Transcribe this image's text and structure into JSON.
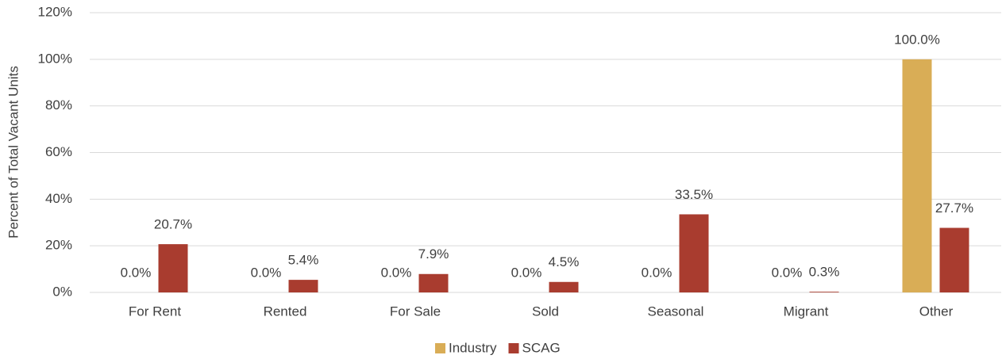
{
  "chart_data": {
    "type": "bar",
    "y_label": "Percent of Total Vacant Units",
    "categories": [
      "For Rent",
      "Rented",
      "For Sale",
      "Sold",
      "Seasonal",
      "Migrant",
      "Other"
    ],
    "series": [
      {
        "name": "Industry",
        "color": "#d9ad56",
        "values": [
          0,
          0,
          0,
          0,
          0,
          0,
          100
        ],
        "value_labels": [
          "0.0%",
          "0.0%",
          "0.0%",
          "0.0%",
          "0.0%",
          "0.0%",
          "100.0%"
        ]
      },
      {
        "name": "SCAG",
        "color": "#a93c2f",
        "values": [
          20.7,
          5.4,
          7.9,
          4.5,
          33.5,
          0.3,
          27.7
        ],
        "value_labels": [
          "20.7%",
          "5.4%",
          "7.9%",
          "4.5%",
          "33.5%",
          "0.3%",
          "27.7%"
        ]
      }
    ],
    "ylim": [
      0,
      120
    ],
    "yticks": [
      {
        "value": 0,
        "label": "0%"
      },
      {
        "value": 20,
        "label": "20%"
      },
      {
        "value": 40,
        "label": "40%"
      },
      {
        "value": 60,
        "label": "60%"
      },
      {
        "value": 80,
        "label": "80%"
      },
      {
        "value": 100,
        "label": "100%"
      },
      {
        "value": 120,
        "label": "120%"
      }
    ],
    "grid": true,
    "legend": "bottom"
  }
}
